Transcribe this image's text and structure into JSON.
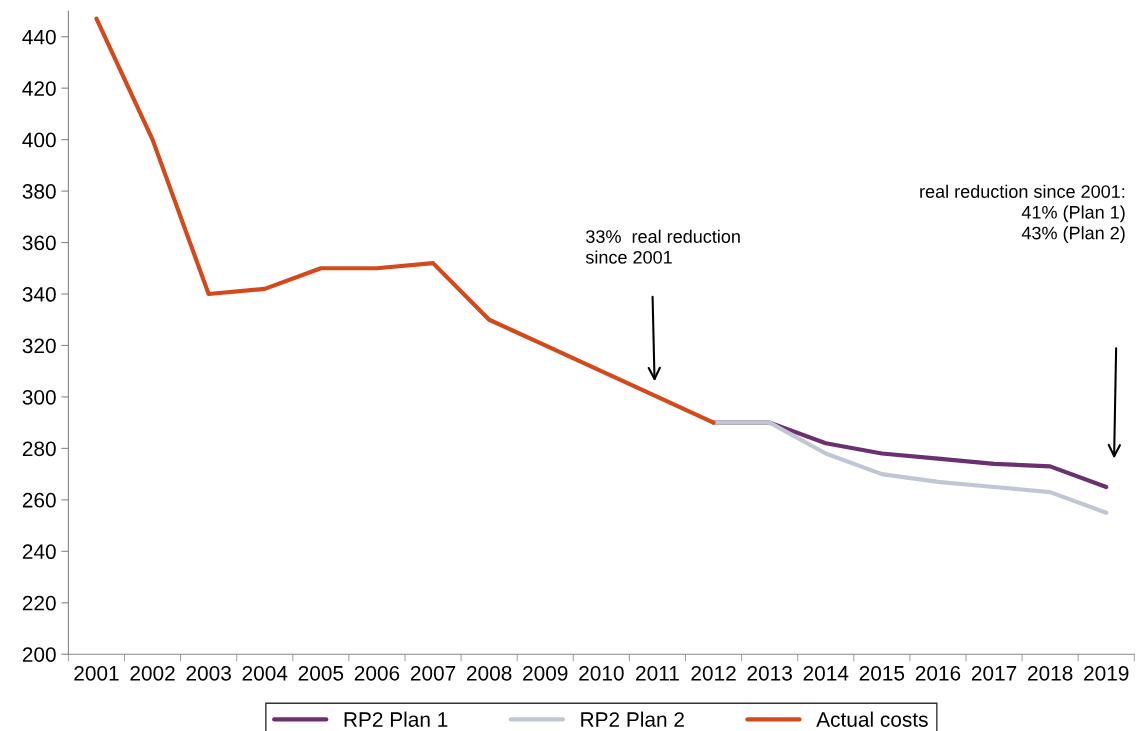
{
  "chart_data": {
    "type": "line",
    "categories": [
      "2001",
      "2002",
      "2003",
      "2004",
      "2005",
      "2006",
      "2007",
      "2008",
      "2009",
      "2010",
      "2011",
      "2012",
      "2013",
      "2014",
      "2015",
      "2016",
      "2017",
      "2018",
      "2019"
    ],
    "series": [
      {
        "name": "RP2 Plan 1",
        "color": "#6b3070",
        "values": [
          null,
          null,
          null,
          null,
          null,
          null,
          null,
          null,
          null,
          null,
          null,
          290,
          290,
          282,
          278,
          276,
          274,
          273,
          265
        ]
      },
      {
        "name": "RP2 Plan 2",
        "color": "#c0c6d4",
        "values": [
          null,
          null,
          null,
          null,
          null,
          null,
          null,
          null,
          null,
          null,
          null,
          290,
          290,
          278,
          270,
          267,
          265,
          263,
          255
        ]
      },
      {
        "name": "Actual costs",
        "color": "#d4491c",
        "values": [
          447,
          400,
          340,
          342,
          350,
          350,
          352,
          330,
          320,
          310,
          300,
          290,
          null,
          null,
          null,
          null,
          null,
          null,
          null
        ]
      }
    ],
    "ylim": [
      200,
      450
    ],
    "yticks": [
      200,
      220,
      240,
      260,
      280,
      300,
      320,
      340,
      360,
      380,
      400,
      420,
      440
    ],
    "annotations": [
      "33%  real reduction\nsince 2001",
      "real reduction since 2001:\n41% (Plan 1)\n43% (Plan 2)"
    ],
    "grid": false,
    "legend": "bottom",
    "marker": "none",
    "line_style": "solid"
  }
}
